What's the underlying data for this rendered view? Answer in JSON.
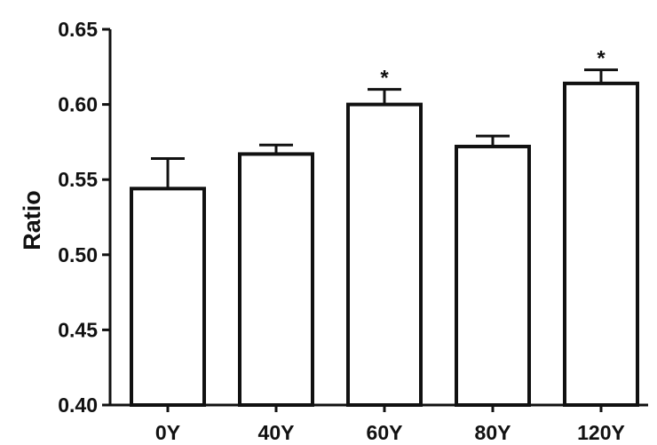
{
  "chart_data": {
    "type": "bar",
    "categories": [
      "0Y",
      "40Y",
      "60Y",
      "80Y",
      "120Y"
    ],
    "values": [
      0.544,
      0.567,
      0.6,
      0.572,
      0.614
    ],
    "error_upper": [
      0.564,
      0.573,
      0.61,
      0.579,
      0.623
    ],
    "annotations": [
      "",
      "",
      "*",
      "",
      "*"
    ],
    "ylabel": "Ratio",
    "xlabel": "",
    "title": "",
    "ylim": [
      0.4,
      0.65
    ],
    "yticks": [
      0.4,
      0.45,
      0.5,
      0.55,
      0.6,
      0.65
    ],
    "ytick_labels": [
      "0.40",
      "0.45",
      "0.50",
      "0.55",
      "0.60",
      "0.65"
    ],
    "grid": false,
    "legend": "none",
    "colors": {
      "bar_fill": "#ffffff",
      "bar_stroke": "#111111",
      "axis": "#111111"
    }
  }
}
